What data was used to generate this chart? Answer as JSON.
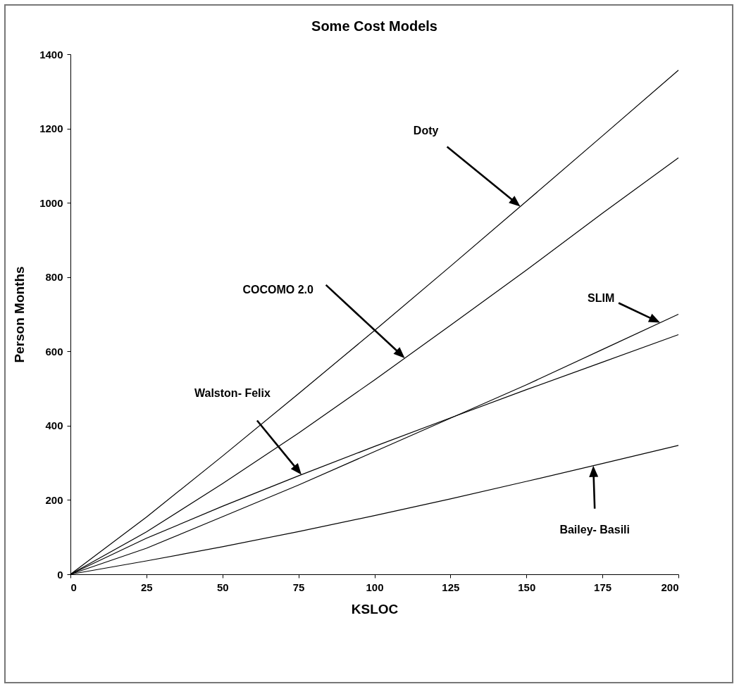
{
  "chart_data": {
    "type": "line",
    "title": "Some Cost Models",
    "xlabel": "KSLOC",
    "ylabel": "Person Months",
    "x": [
      0,
      25,
      50,
      75,
      100,
      125,
      150,
      175,
      200
    ],
    "series": [
      {
        "color": "#000000",
        "values": [
          0,
          154,
          318,
          486,
          656,
          829,
          1004,
          1180,
          1357
        ]
      },
      {
        "color": "#000000",
        "values": [
          0,
          114,
          244,
          380,
          523,
          670,
          819,
          972,
          1121
        ]
      },
      {
        "color": "#000000",
        "values": [
          0,
          97,
          183,
          265,
          344,
          421,
          497,
          571,
          645
        ]
      },
      {
        "color": "#000000",
        "values": [
          0,
          70,
          155,
          240,
          330,
          420,
          510,
          605,
          700
        ]
      },
      {
        "color": "#000000",
        "values": [
          0,
          36,
          74,
          115,
          158,
          203,
          250,
          298,
          347
        ]
      }
    ],
    "xlim": [
      0,
      200
    ],
    "xticks": [
      0,
      25,
      50,
      75,
      100,
      125,
      150,
      175,
      200
    ],
    "ylim": [
      0,
      1400
    ],
    "yticks": [
      0,
      200,
      400,
      600,
      800,
      1000,
      1200,
      1400
    ],
    "grid": false,
    "legend": false,
    "marker": "none",
    "line_style": "solid",
    "annotations": [
      "Doty",
      "COCOMO 2.0",
      "Walston- Felix",
      "SLIM",
      "Bailey- Basili"
    ]
  }
}
